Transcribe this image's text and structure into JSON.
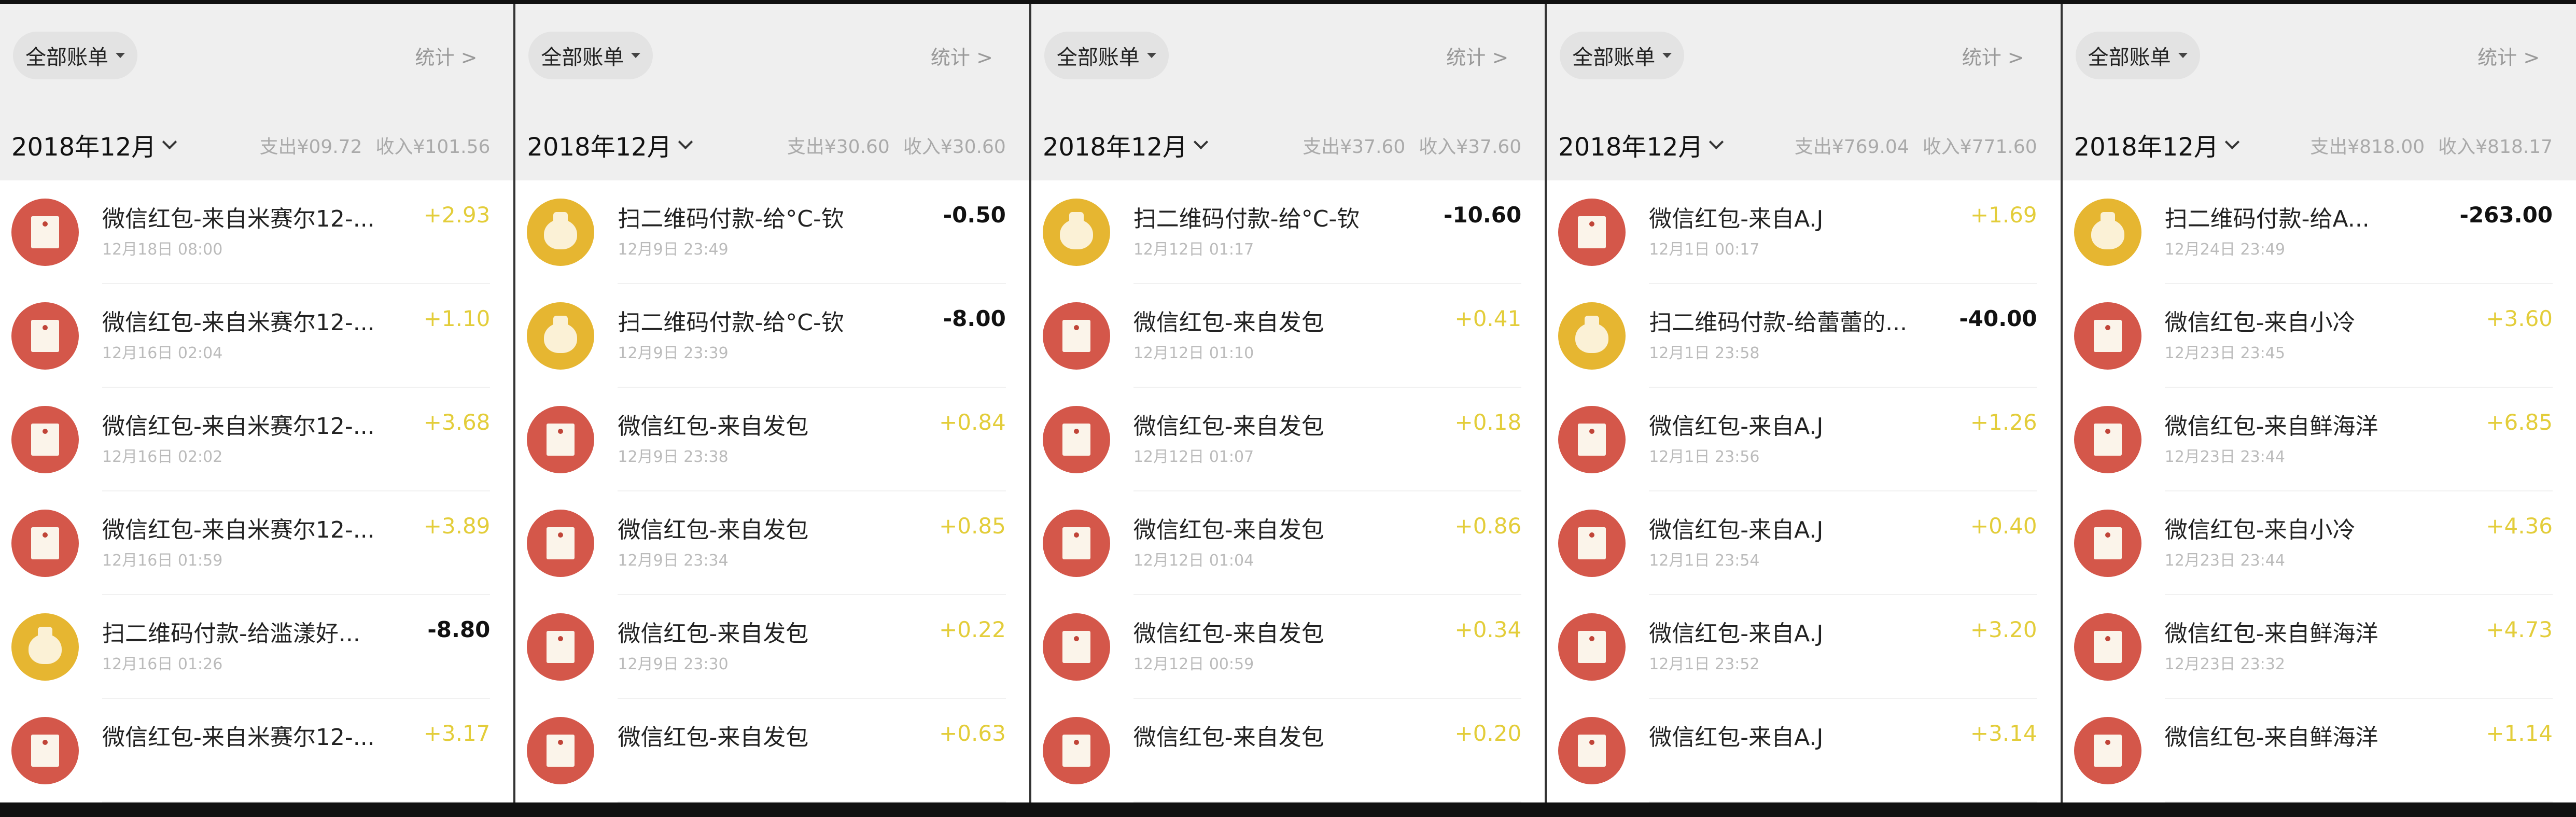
{
  "colors": {
    "income": "#e3cd3a",
    "expense": "#111111",
    "red_packet_icon": "#d4574a",
    "qr_pay_icon": "#e6b631"
  },
  "panels": [
    {
      "filter_label": "全部账单",
      "stats_label": "统计 >",
      "month": "2018年12月",
      "expense": "支出¥09.72",
      "income": "收入¥101.56",
      "rows": [
        {
          "icon": "red-packet",
          "title": "微信红包-来自米赛尔12-...",
          "time": "12月18日 08:00",
          "amount": "+2.93",
          "type": "income"
        },
        {
          "icon": "red-packet",
          "title": "微信红包-来自米赛尔12-...",
          "time": "12月16日 02:04",
          "amount": "+1.10",
          "type": "income"
        },
        {
          "icon": "red-packet",
          "title": "微信红包-来自米赛尔12-...",
          "time": "12月16日 02:02",
          "amount": "+3.68",
          "type": "income"
        },
        {
          "icon": "red-packet",
          "title": "微信红包-来自米赛尔12-...",
          "time": "12月16日 01:59",
          "amount": "+3.89",
          "type": "income"
        },
        {
          "icon": "qr-pay",
          "title": "扫二维码付款-给滥漾好...",
          "time": "12月16日 01:26",
          "amount": "-8.80",
          "type": "expense"
        },
        {
          "icon": "red-packet",
          "title": "微信红包-来自米赛尔12-...",
          "time": "",
          "amount": "+3.17",
          "type": "income"
        }
      ]
    },
    {
      "filter_label": "全部账单",
      "stats_label": "统计 >",
      "month": "2018年12月",
      "expense": "支出¥30.60",
      "income": "收入¥30.60",
      "rows": [
        {
          "icon": "qr-pay",
          "title": "扫二维码付款-给°C-钦",
          "time": "12月9日 23:49",
          "amount": "-0.50",
          "type": "expense"
        },
        {
          "icon": "qr-pay",
          "title": "扫二维码付款-给°C-钦",
          "time": "12月9日 23:39",
          "amount": "-8.00",
          "type": "expense"
        },
        {
          "icon": "red-packet",
          "title": "微信红包-来自发包",
          "time": "12月9日 23:38",
          "amount": "+0.84",
          "type": "income"
        },
        {
          "icon": "red-packet",
          "title": "微信红包-来自发包",
          "time": "12月9日 23:34",
          "amount": "+0.85",
          "type": "income"
        },
        {
          "icon": "red-packet",
          "title": "微信红包-来自发包",
          "time": "12月9日 23:30",
          "amount": "+0.22",
          "type": "income"
        },
        {
          "icon": "red-packet",
          "title": "微信红包-来自发包",
          "time": "",
          "amount": "+0.63",
          "type": "income"
        }
      ]
    },
    {
      "filter_label": "全部账单",
      "stats_label": "统计 >",
      "month": "2018年12月",
      "expense": "支出¥37.60",
      "income": "收入¥37.60",
      "rows": [
        {
          "icon": "qr-pay",
          "title": "扫二维码付款-给°C-钦",
          "time": "12月12日 01:17",
          "amount": "-10.60",
          "type": "expense"
        },
        {
          "icon": "red-packet",
          "title": "微信红包-来自发包",
          "time": "12月12日 01:10",
          "amount": "+0.41",
          "type": "income"
        },
        {
          "icon": "red-packet",
          "title": "微信红包-来自发包",
          "time": "12月12日 01:07",
          "amount": "+0.18",
          "type": "income"
        },
        {
          "icon": "red-packet",
          "title": "微信红包-来自发包",
          "time": "12月12日 01:04",
          "amount": "+0.86",
          "type": "income"
        },
        {
          "icon": "red-packet",
          "title": "微信红包-来自发包",
          "time": "12月12日 00:59",
          "amount": "+0.34",
          "type": "income"
        },
        {
          "icon": "red-packet",
          "title": "微信红包-来自发包",
          "time": "",
          "amount": "+0.20",
          "type": "income"
        }
      ]
    },
    {
      "filter_label": "全部账单",
      "stats_label": "统计 >",
      "month": "2018年12月",
      "expense": "支出¥769.04",
      "income": "收入¥771.60",
      "rows": [
        {
          "icon": "red-packet",
          "title": "微信红包-来自A.J",
          "time": "12月1日 00:17",
          "amount": "+1.69",
          "type": "income"
        },
        {
          "icon": "qr-pay",
          "title": "扫二维码付款-给蕾蕾的...",
          "time": "12月1日 23:58",
          "amount": "-40.00",
          "type": "expense"
        },
        {
          "icon": "red-packet",
          "title": "微信红包-来自A.J",
          "time": "12月1日 23:56",
          "amount": "+1.26",
          "type": "income"
        },
        {
          "icon": "red-packet",
          "title": "微信红包-来自A.J",
          "time": "12月1日 23:54",
          "amount": "+0.40",
          "type": "income"
        },
        {
          "icon": "red-packet",
          "title": "微信红包-来自A.J",
          "time": "12月1日 23:52",
          "amount": "+3.20",
          "type": "income"
        },
        {
          "icon": "red-packet",
          "title": "微信红包-来自A.J",
          "time": "",
          "amount": "+3.14",
          "type": "income"
        }
      ]
    },
    {
      "filter_label": "全部账单",
      "stats_label": "统计 >",
      "month": "2018年12月",
      "expense": "支出¥818.00",
      "income": "收入¥818.17",
      "rows": [
        {
          "icon": "qr-pay",
          "title": "扫二维码付款-给A...",
          "time": "12月24日 23:49",
          "amount": "-263.00",
          "type": "expense"
        },
        {
          "icon": "red-packet",
          "title": "微信红包-来自小冷",
          "time": "12月23日 23:45",
          "amount": "+3.60",
          "type": "income"
        },
        {
          "icon": "red-packet",
          "title": "微信红包-来自鲜海洋",
          "time": "12月23日 23:44",
          "amount": "+6.85",
          "type": "income"
        },
        {
          "icon": "red-packet",
          "title": "微信红包-来自小冷",
          "time": "12月23日 23:44",
          "amount": "+4.36",
          "type": "income"
        },
        {
          "icon": "red-packet",
          "title": "微信红包-来自鲜海洋",
          "time": "12月23日 23:32",
          "amount": "+4.73",
          "type": "income"
        },
        {
          "icon": "red-packet",
          "title": "微信红包-来自鲜海洋",
          "time": "",
          "amount": "+1.14",
          "type": "income"
        }
      ]
    }
  ]
}
